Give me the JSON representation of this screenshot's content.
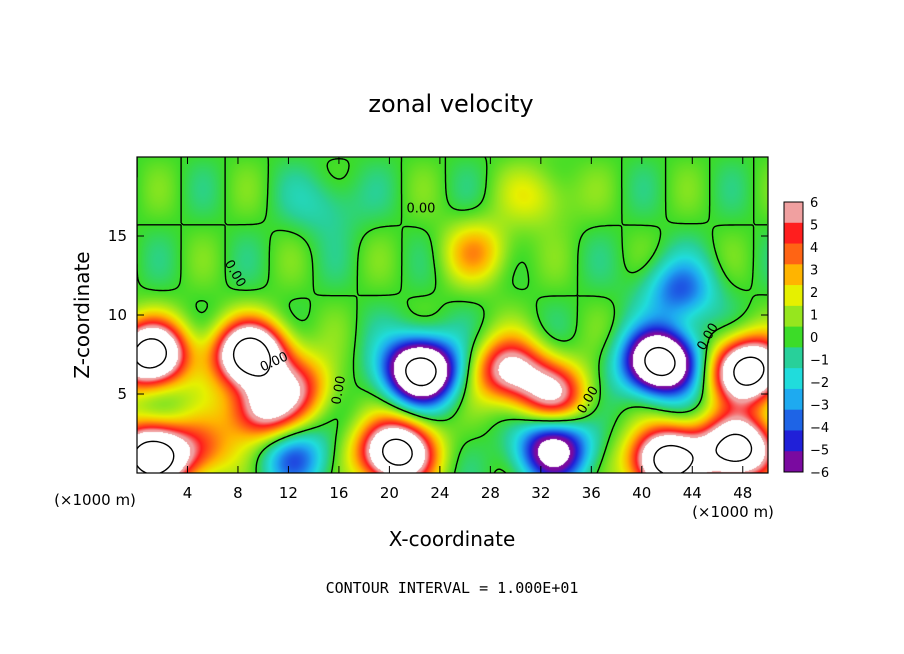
{
  "chart_data": {
    "type": "heatmap",
    "title": "zonal velocity",
    "xlabel": "X-coordinate",
    "ylabel": "Z-coordinate",
    "x_unit_left": "(×1000 m)",
    "x_unit_right": "(×1000 m)",
    "footer": "CONTOUR INTERVAL = 1.000E+01",
    "xlim": [
      0,
      50
    ],
    "ylim": [
      0,
      20
    ],
    "x_ticks": [
      4,
      8,
      12,
      16,
      20,
      24,
      28,
      32,
      36,
      40,
      44,
      48
    ],
    "y_ticks": [
      5,
      10,
      15
    ],
    "colorbar": {
      "range": [
        -6,
        6
      ],
      "ticks": [
        6,
        5,
        4,
        3,
        2,
        1,
        0,
        -1,
        -2,
        -3,
        -4,
        -5,
        -6
      ],
      "tick_labels": [
        "6",
        "5",
        "4",
        "3",
        "2",
        "1",
        "0",
        "−1",
        "−2",
        "−3",
        "−4",
        "−5",
        "−6"
      ],
      "colors": [
        "#7a0aa0",
        "#2020d8",
        "#1e64e6",
        "#1eaaf0",
        "#20dcdc",
        "#28d09a",
        "#3cdc28",
        "#96e61e",
        "#e6f000",
        "#ffb400",
        "#ff6414",
        "#ff1e1e",
        "#f0a0a0"
      ]
    },
    "contour_labels": [
      "0.00",
      "0.00",
      "0.00",
      "0.00",
      "0.00",
      "0.00"
    ],
    "blobs": [
      {
        "x": 1.0,
        "z": 7.5,
        "v": 12
      },
      {
        "x": 9.0,
        "z": 7.5,
        "v": 12
      },
      {
        "x": 10.0,
        "z": 4.0,
        "v": 7
      },
      {
        "x": 13.0,
        "z": 5.5,
        "v": 4
      },
      {
        "x": 22.5,
        "z": 6.5,
        "v": -12
      },
      {
        "x": 29.5,
        "z": 6.5,
        "v": 7
      },
      {
        "x": 33.0,
        "z": 5.0,
        "v": 6
      },
      {
        "x": 41.5,
        "z": 7.0,
        "v": -12
      },
      {
        "x": 48.5,
        "z": 6.5,
        "v": 12
      },
      {
        "x": 20.5,
        "z": 1.3,
        "v": 12
      },
      {
        "x": 42.0,
        "z": 0.8,
        "v": 12
      },
      {
        "x": 1.0,
        "z": 1.0,
        "v": 12
      },
      {
        "x": 47.5,
        "z": 1.5,
        "v": 12
      },
      {
        "x": 5.0,
        "z": 1.5,
        "v": 4
      },
      {
        "x": 33.0,
        "z": 1.5,
        "v": -8
      },
      {
        "x": 12.5,
        "z": 1.0,
        "v": -4
      },
      {
        "x": 27.0,
        "z": 14.0,
        "v": 3
      },
      {
        "x": 32.0,
        "z": 17.5,
        "v": 2
      },
      {
        "x": 15.0,
        "z": 17.0,
        "v": -1.5
      },
      {
        "x": 43.0,
        "z": 11.5,
        "v": -4
      }
    ]
  }
}
